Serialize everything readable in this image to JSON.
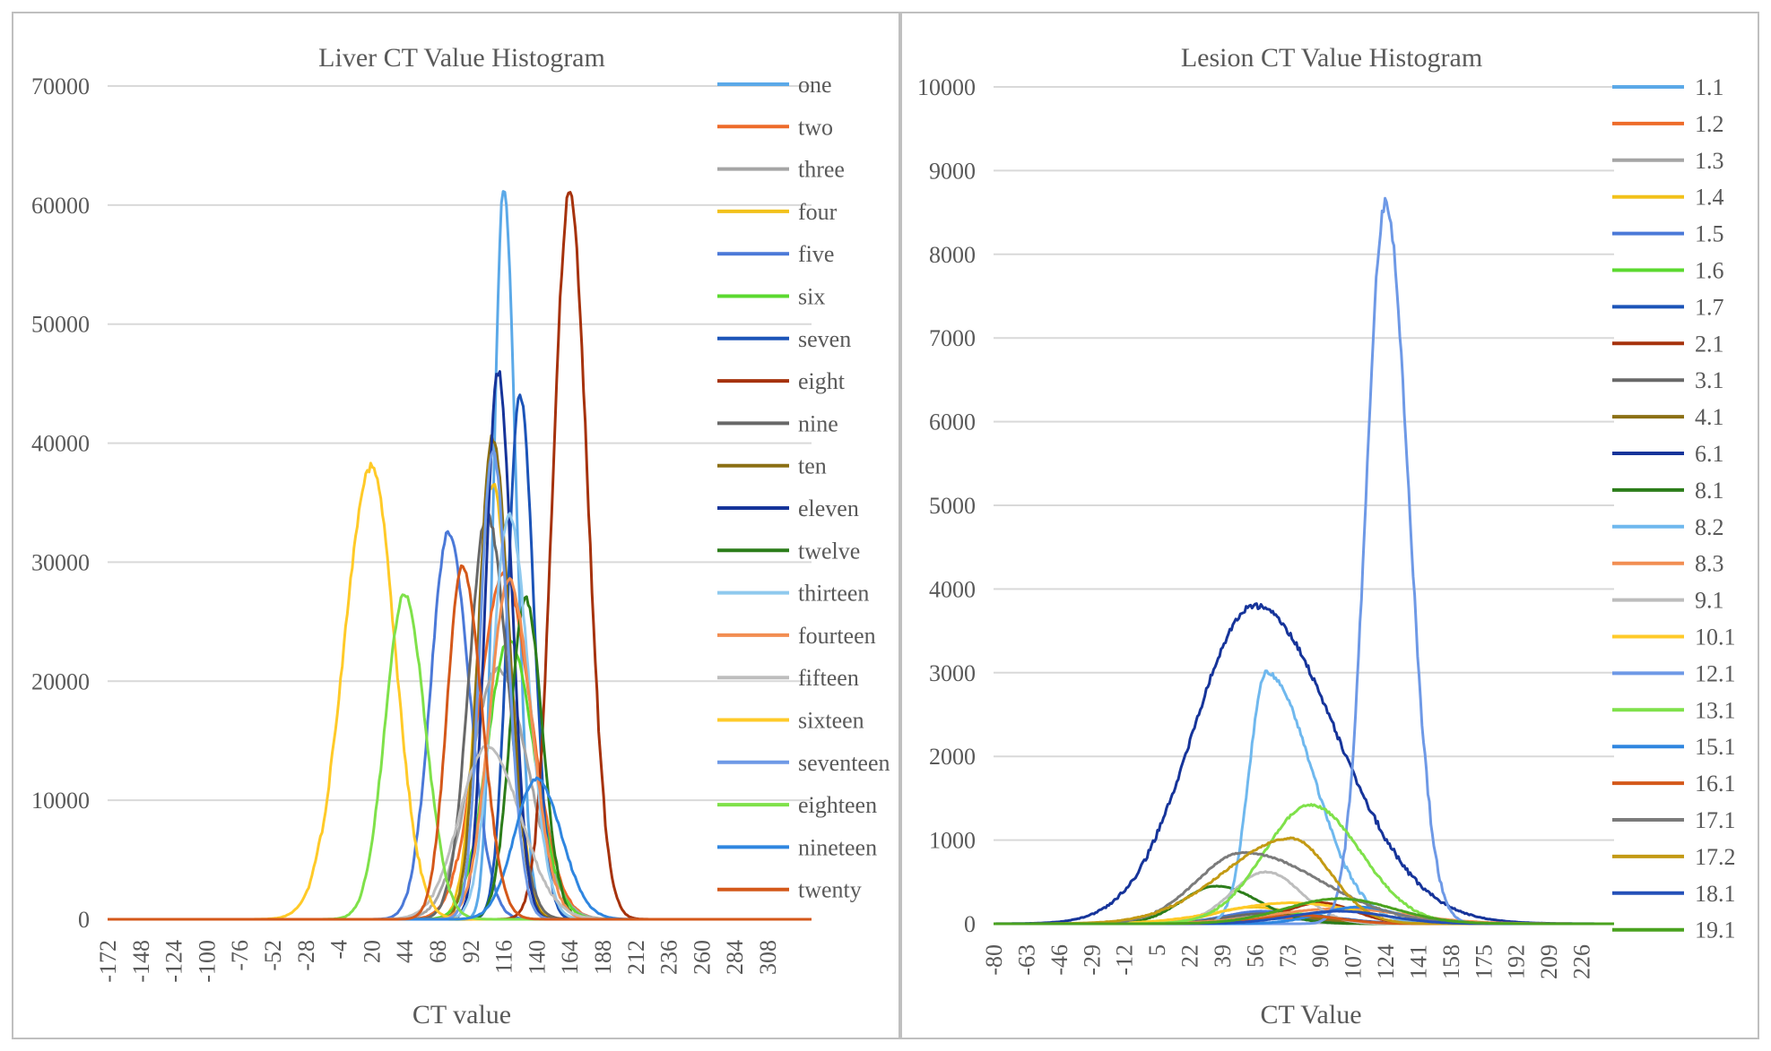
{
  "colors": {
    "palette": [
      "#5b9bd5",
      "#ed7d31",
      "#a5a5a5",
      "#ffc000",
      "#4472c4",
      "#70ad47",
      "#264478",
      "#9e480e",
      "#636363",
      "#997300",
      "#255e91",
      "#43682b",
      "#7cafdd",
      "#f1975a",
      "#b7b7b7",
      "#ffcd33",
      "#698ed0",
      "#8cc168",
      "#327dc2",
      "#d26012",
      "#2a55a0"
    ]
  },
  "chart_data": [
    {
      "type": "line",
      "title": "Liver CT Value Histogram",
      "xlabel": "CT value",
      "ylabel": "",
      "xlim": [
        -172,
        340
      ],
      "ylim": [
        0,
        70000
      ],
      "x_ticks": [
        -172,
        -148,
        -124,
        -100,
        -76,
        -52,
        -28,
        -4,
        20,
        44,
        68,
        92,
        116,
        140,
        164,
        188,
        212,
        236,
        260,
        284,
        308
      ],
      "y_ticks": [
        0,
        10000,
        20000,
        30000,
        40000,
        50000,
        60000,
        70000
      ],
      "grid": true,
      "legend_position": "right",
      "series": [
        {
          "name": "one",
          "color": "#5ba9e8",
          "peak_x": 116,
          "peak_y": 61500,
          "sigma_left": 7,
          "sigma_right": 9
        },
        {
          "name": "two",
          "color": "#ee6b2a",
          "peak_x": 116,
          "peak_y": 29000,
          "sigma_left": 18,
          "sigma_right": 20
        },
        {
          "name": "three",
          "color": "#a5a5a5",
          "peak_x": 112,
          "peak_y": 21000,
          "sigma_left": 20,
          "sigma_right": 22
        },
        {
          "name": "four",
          "color": "#f2c11a",
          "peak_x": 108,
          "peak_y": 36500,
          "sigma_left": 11,
          "sigma_right": 13
        },
        {
          "name": "five",
          "color": "#4b79d8",
          "peak_x": 76,
          "peak_y": 32500,
          "sigma_left": 13,
          "sigma_right": 15
        },
        {
          "name": "six",
          "color": "#5bd92f",
          "peak_x": 120,
          "peak_y": 23500,
          "sigma_left": 16,
          "sigma_right": 18
        },
        {
          "name": "seven",
          "color": "#1c54b8",
          "peak_x": 128,
          "peak_y": 44000,
          "sigma_left": 9,
          "sigma_right": 10
        },
        {
          "name": "eight",
          "color": "#a6320c",
          "peak_x": 164,
          "peak_y": 61000,
          "sigma_left": 12,
          "sigma_right": 13
        },
        {
          "name": "nine",
          "color": "#686868",
          "peak_x": 104,
          "peak_y": 34000,
          "sigma_left": 13,
          "sigma_right": 15
        },
        {
          "name": "ten",
          "color": "#8b6f14",
          "peak_x": 108,
          "peak_y": 40500,
          "sigma_left": 10,
          "sigma_right": 12
        },
        {
          "name": "eleven",
          "color": "#16349a",
          "peak_x": 112,
          "peak_y": 46000,
          "sigma_left": 9,
          "sigma_right": 10
        },
        {
          "name": "twelve",
          "color": "#2c7d1a",
          "peak_x": 132,
          "peak_y": 27000,
          "sigma_left": 11,
          "sigma_right": 12
        },
        {
          "name": "thirteen",
          "color": "#8fc9ee",
          "peak_x": 120,
          "peak_y": 34000,
          "sigma_left": 12,
          "sigma_right": 14
        },
        {
          "name": "fourteen",
          "color": "#f28e52",
          "peak_x": 120,
          "peak_y": 28500,
          "sigma_left": 14,
          "sigma_right": 16
        },
        {
          "name": "fifteen",
          "color": "#bdbdbd",
          "peak_x": 104,
          "peak_y": 14500,
          "sigma_left": 20,
          "sigma_right": 24
        },
        {
          "name": "sixteen",
          "color": "#ffca28",
          "peak_x": 20,
          "peak_y": 38000,
          "sigma_left": 20,
          "sigma_right": 17
        },
        {
          "name": "seventeen",
          "color": "#6e99e6",
          "peak_x": 108,
          "peak_y": 39500,
          "sigma_left": 9,
          "sigma_right": 11
        },
        {
          "name": "eighteen",
          "color": "#7fe14a",
          "peak_x": 44,
          "peak_y": 27300,
          "sigma_left": 14,
          "sigma_right": 15
        },
        {
          "name": "nineteen",
          "color": "#2f86e0",
          "peak_x": 140,
          "peak_y": 11800,
          "sigma_left": 16,
          "sigma_right": 18
        },
        {
          "name": "twenty",
          "color": "#d4581a",
          "peak_x": 86,
          "peak_y": 29800,
          "sigma_left": 11,
          "sigma_right": 14
        }
      ]
    },
    {
      "type": "line",
      "title": "Lesion CT Value Histogram",
      "xlabel": "CT Value",
      "ylabel": "",
      "xlim": [
        -80,
        243
      ],
      "ylim": [
        0,
        10000
      ],
      "x_ticks": [
        -80,
        -63,
        -46,
        -29,
        -12,
        5,
        22,
        39,
        56,
        73,
        90,
        107,
        124,
        141,
        158,
        175,
        192,
        209,
        226
      ],
      "y_ticks": [
        0,
        1000,
        2000,
        3000,
        4000,
        5000,
        6000,
        7000,
        8000,
        9000,
        10000
      ],
      "grid": true,
      "legend_position": "right",
      "series": [
        {
          "name": "1.1",
          "color": "#5ba9e8",
          "peak_x": 65,
          "peak_y": 60,
          "sigma_left": 25,
          "sigma_right": 25
        },
        {
          "name": "1.2",
          "color": "#ee6b2a",
          "peak_x": 60,
          "peak_y": 80,
          "sigma_left": 25,
          "sigma_right": 25
        },
        {
          "name": "1.3",
          "color": "#a5a5a5",
          "peak_x": 70,
          "peak_y": 100,
          "sigma_left": 25,
          "sigma_right": 25
        },
        {
          "name": "1.4",
          "color": "#f2c11a",
          "peak_x": 55,
          "peak_y": 200,
          "sigma_left": 20,
          "sigma_right": 22
        },
        {
          "name": "1.5",
          "color": "#4b79d8",
          "peak_x": 60,
          "peak_y": 150,
          "sigma_left": 20,
          "sigma_right": 22
        },
        {
          "name": "1.6",
          "color": "#5bd92f",
          "peak_x": 75,
          "peak_y": 120,
          "sigma_left": 22,
          "sigma_right": 22
        },
        {
          "name": "1.7",
          "color": "#1c54b8",
          "peak_x": 80,
          "peak_y": 100,
          "sigma_left": 22,
          "sigma_right": 22
        },
        {
          "name": "2.1",
          "color": "#a6320c",
          "peak_x": 90,
          "peak_y": 250,
          "sigma_left": 18,
          "sigma_right": 18
        },
        {
          "name": "3.1",
          "color": "#686868",
          "peak_x": 60,
          "peak_y": 120,
          "sigma_left": 20,
          "sigma_right": 20
        },
        {
          "name": "4.1",
          "color": "#8b6f14",
          "peak_x": 70,
          "peak_y": 100,
          "sigma_left": 20,
          "sigma_right": 20
        },
        {
          "name": "6.1",
          "color": "#16349a",
          "peak_x": 56,
          "peak_y": 3800,
          "sigma_left": 32,
          "sigma_right": 42
        },
        {
          "name": "8.1",
          "color": "#2c7d1a",
          "peak_x": 36,
          "peak_y": 450,
          "sigma_left": 18,
          "sigma_right": 22
        },
        {
          "name": "8.2",
          "color": "#6fb8ee",
          "peak_x": 62,
          "peak_y": 3000,
          "sigma_left": 9,
          "sigma_right": 24
        },
        {
          "name": "8.3",
          "color": "#f28e52",
          "peak_x": 100,
          "peak_y": 180,
          "sigma_left": 35,
          "sigma_right": 35
        },
        {
          "name": "9.1",
          "color": "#bdbdbd",
          "peak_x": 62,
          "peak_y": 620,
          "sigma_left": 18,
          "sigma_right": 18
        },
        {
          "name": "10.1",
          "color": "#ffca28",
          "peak_x": 75,
          "peak_y": 250,
          "sigma_left": 35,
          "sigma_right": 35
        },
        {
          "name": "12.1",
          "color": "#6e99e6",
          "peak_x": 124,
          "peak_y": 8600,
          "sigma_left": 10,
          "sigma_right": 12
        },
        {
          "name": "13.1",
          "color": "#7fe14a",
          "peak_x": 85,
          "peak_y": 1420,
          "sigma_left": 24,
          "sigma_right": 26
        },
        {
          "name": "15.1",
          "color": "#2f86e0",
          "peak_x": 110,
          "peak_y": 200,
          "sigma_left": 20,
          "sigma_right": 20
        },
        {
          "name": "16.1",
          "color": "#d4581a",
          "peak_x": 80,
          "peak_y": 100,
          "sigma_left": 20,
          "sigma_right": 20
        },
        {
          "name": "17.1",
          "color": "#7b7b7b",
          "peak_x": 50,
          "peak_y": 850,
          "sigma_left": 24,
          "sigma_right": 40
        },
        {
          "name": "17.2",
          "color": "#c39a14",
          "peak_x": 75,
          "peak_y": 1020,
          "sigma_left": 35,
          "sigma_right": 20
        },
        {
          "name": "18.1",
          "color": "#2450b8",
          "peak_x": 100,
          "peak_y": 150,
          "sigma_left": 25,
          "sigma_right": 25
        },
        {
          "name": "19.1",
          "color": "#4aa21f",
          "peak_x": 100,
          "peak_y": 300,
          "sigma_left": 28,
          "sigma_right": 28
        }
      ]
    }
  ]
}
